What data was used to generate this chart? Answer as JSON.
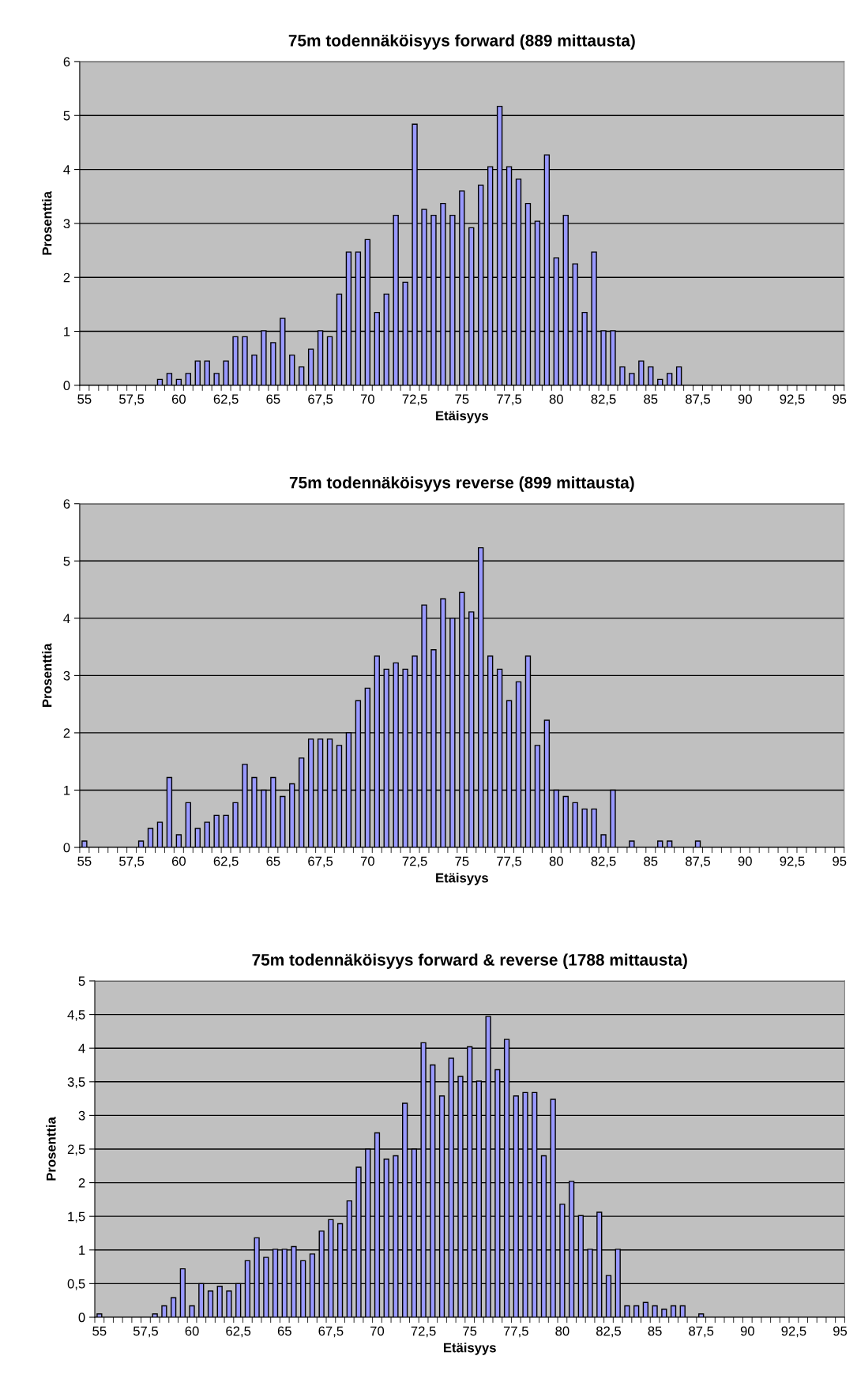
{
  "chart_data": [
    {
      "type": "bar",
      "title": "75m todennäköisyys forward (889 mittausta)",
      "xlabel": "Etäisyys",
      "ylabel": "Prosenttia",
      "color": "#9999ff",
      "grid": "y",
      "categories": [
        "55",
        null,
        null,
        null,
        null,
        "57,5",
        null,
        null,
        null,
        null,
        "60",
        null,
        null,
        null,
        null,
        "62,5",
        null,
        null,
        null,
        null,
        "65",
        null,
        null,
        null,
        null,
        "67,5",
        null,
        null,
        null,
        null,
        "70",
        null,
        null,
        null,
        null,
        "72,5",
        null,
        null,
        null,
        null,
        "75",
        null,
        null,
        null,
        null,
        "77,5",
        null,
        null,
        null,
        null,
        "80",
        null,
        null,
        null,
        null,
        "82,5",
        null,
        null,
        null,
        null,
        "85",
        null,
        null,
        null,
        null,
        "87,5",
        null,
        null,
        null,
        null,
        "90",
        null,
        null,
        null,
        null,
        "92,5",
        null,
        null,
        null,
        null,
        "95"
      ],
      "values": [
        0,
        0,
        0,
        0,
        0,
        0,
        0,
        0,
        0.11,
        0.22,
        0.11,
        0.22,
        0.45,
        0.45,
        0.22,
        0.45,
        0.9,
        0.9,
        0.56,
        1.01,
        0.79,
        1.24,
        0.56,
        0.34,
        0.67,
        1.01,
        0.9,
        1.69,
        2.47,
        2.47,
        2.7,
        1.35,
        1.69,
        3.15,
        1.91,
        4.84,
        3.26,
        3.15,
        3.37,
        3.15,
        3.6,
        2.92,
        3.71,
        4.05,
        5.17,
        4.05,
        3.82,
        3.37,
        3.04,
        4.27,
        2.36,
        3.15,
        2.25,
        1.35,
        2.47,
        1.01,
        1.01,
        0.34,
        0.22,
        0.45,
        0.34,
        0.11,
        0.22,
        0.34,
        0,
        0,
        0,
        0,
        0,
        0,
        0,
        0,
        0,
        0,
        0,
        0,
        0,
        0,
        0,
        0,
        0
      ],
      "ylim": [
        0,
        6
      ],
      "yticks": [
        0,
        1,
        2,
        3,
        4,
        5,
        6
      ]
    },
    {
      "type": "bar",
      "title": "75m todennäköisyys reverse (899 mittausta)",
      "xlabel": "Etäisyys",
      "ylabel": "Prosenttia",
      "color": "#9999ff",
      "grid": "y",
      "categories": [
        "55",
        null,
        null,
        null,
        null,
        "57,5",
        null,
        null,
        null,
        null,
        "60",
        null,
        null,
        null,
        null,
        "62,5",
        null,
        null,
        null,
        null,
        "65",
        null,
        null,
        null,
        null,
        "67,5",
        null,
        null,
        null,
        null,
        "70",
        null,
        null,
        null,
        null,
        "72,5",
        null,
        null,
        null,
        null,
        "75",
        null,
        null,
        null,
        null,
        "77,5",
        null,
        null,
        null,
        null,
        "80",
        null,
        null,
        null,
        null,
        "82,5",
        null,
        null,
        null,
        null,
        "85",
        null,
        null,
        null,
        null,
        "87,5",
        null,
        null,
        null,
        null,
        "90",
        null,
        null,
        null,
        null,
        "92,5",
        null,
        null,
        null,
        null,
        "95"
      ],
      "values": [
        0.11,
        0,
        0,
        0,
        0,
        0,
        0.11,
        0.33,
        0.44,
        1.22,
        0.22,
        0.78,
        0.33,
        0.44,
        0.56,
        0.56,
        0.78,
        1.45,
        1.22,
        1.0,
        1.22,
        0.89,
        1.11,
        1.56,
        1.89,
        1.89,
        1.89,
        1.78,
        2.0,
        2.56,
        2.78,
        3.34,
        3.11,
        3.22,
        3.11,
        3.34,
        4.23,
        3.45,
        4.34,
        4.0,
        4.45,
        4.11,
        5.23,
        3.34,
        3.11,
        2.56,
        2.89,
        3.34,
        1.78,
        2.22,
        1.0,
        0.89,
        0.78,
        0.67,
        0.67,
        0.22,
        1.0,
        0,
        0.11,
        0,
        0,
        0.11,
        0.11,
        0,
        0,
        0.11,
        0,
        0,
        0,
        0,
        0,
        0,
        0,
        0,
        0,
        0,
        0,
        0,
        0,
        0,
        0
      ],
      "ylim": [
        0,
        6
      ],
      "yticks": [
        0,
        1,
        2,
        3,
        4,
        5,
        6
      ]
    },
    {
      "type": "bar",
      "title": "75m todennäköisyys forward & reverse (1788 mittausta)",
      "xlabel": "Etäisyys",
      "ylabel": "Prosenttia",
      "color": "#9999ff",
      "grid": "y",
      "categories": [
        "55",
        null,
        null,
        null,
        null,
        "57,5",
        null,
        null,
        null,
        null,
        "60",
        null,
        null,
        null,
        null,
        "62,5",
        null,
        null,
        null,
        null,
        "65",
        null,
        null,
        null,
        null,
        "67,5",
        null,
        null,
        null,
        null,
        "70",
        null,
        null,
        null,
        null,
        "72,5",
        null,
        null,
        null,
        null,
        "75",
        null,
        null,
        null,
        null,
        "77,5",
        null,
        null,
        null,
        null,
        "80",
        null,
        null,
        null,
        null,
        "82,5",
        null,
        null,
        null,
        null,
        "85",
        null,
        null,
        null,
        null,
        "87,5",
        null,
        null,
        null,
        null,
        "90",
        null,
        null,
        null,
        null,
        "92,5",
        null,
        null,
        null,
        null,
        "95"
      ],
      "values": [
        0.05,
        0,
        0,
        0,
        0,
        0,
        0.05,
        0.17,
        0.29,
        0.72,
        0.17,
        0.5,
        0.39,
        0.46,
        0.39,
        0.5,
        0.84,
        1.18,
        0.89,
        1.01,
        1.01,
        1.05,
        0.84,
        0.94,
        1.28,
        1.45,
        1.39,
        1.73,
        2.23,
        2.5,
        2.74,
        2.35,
        2.4,
        3.18,
        2.5,
        4.08,
        3.75,
        3.29,
        3.85,
        3.58,
        4.02,
        3.51,
        4.47,
        3.68,
        4.13,
        3.29,
        3.34,
        3.34,
        2.4,
        3.24,
        1.68,
        2.02,
        1.51,
        1.01,
        1.56,
        0.62,
        1.01,
        0.17,
        0.17,
        0.22,
        0.17,
        0.12,
        0.17,
        0.17,
        0,
        0.05,
        0,
        0,
        0,
        0,
        0,
        0,
        0,
        0,
        0,
        0,
        0,
        0,
        0,
        0,
        0
      ],
      "ylim": [
        0,
        5
      ],
      "yticks": [
        0,
        {
          "value": 0.5,
          "label": "0,5"
        },
        1,
        {
          "value": 1.5,
          "label": "1,5"
        },
        2,
        {
          "value": 2.5,
          "label": "2,5"
        },
        3,
        {
          "value": 3.5,
          "label": "3,5"
        },
        4,
        {
          "value": 4.5,
          "label": "4,5"
        },
        5
      ]
    }
  ]
}
